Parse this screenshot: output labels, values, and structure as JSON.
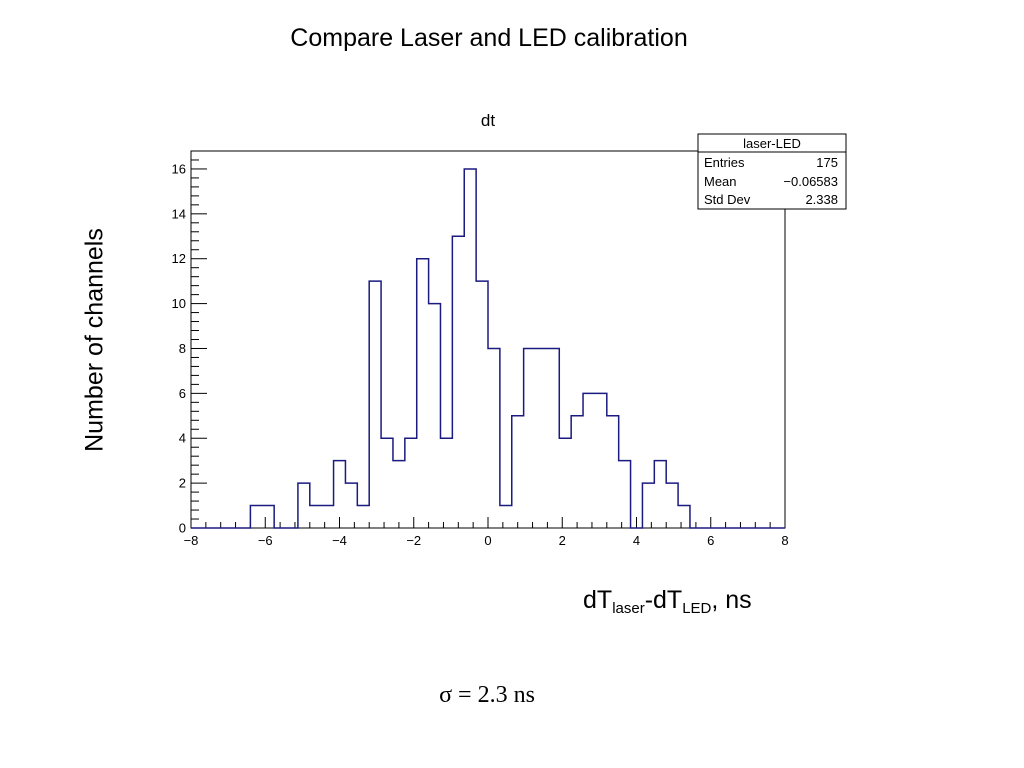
{
  "slide": {
    "title": "Compare Laser and LED calibration",
    "y_title": "Number of channels",
    "x_title_base": "dT",
    "x_title_sub1": "laser",
    "x_title_mid": "-dT",
    "x_title_sub2": "LED",
    "x_title_suffix": ", ns",
    "sigma_text": "σ = 2.3 ns"
  },
  "stats_box": {
    "name": "laser-LED",
    "rows": [
      {
        "label": "Entries",
        "value": "175"
      },
      {
        "label": "Mean",
        "value": "−0.06583"
      },
      {
        "label": "Std Dev",
        "value": "2.338"
      }
    ]
  },
  "chart_data": {
    "type": "bar",
    "title": "dt",
    "xlim": [
      -8,
      8
    ],
    "ylim": [
      0,
      16.8
    ],
    "bin_edges_start": -8,
    "bin_width": 0.32,
    "values": [
      0,
      0,
      0,
      0,
      0,
      1,
      1,
      0,
      0,
      2,
      1,
      1,
      3,
      2,
      1,
      11,
      4,
      3,
      4,
      12,
      10,
      4,
      13,
      16,
      11,
      8,
      1,
      5,
      8,
      8,
      8,
      4,
      5,
      6,
      6,
      5,
      3,
      0,
      2,
      3,
      2,
      1,
      0,
      0,
      0,
      0,
      0,
      0,
      0,
      0
    ],
    "x_ticks": [
      -8,
      -6,
      -4,
      -2,
      0,
      2,
      4,
      6,
      8
    ],
    "x_tick_labels": [
      "−8",
      "−6",
      "−4",
      "−2",
      "0",
      "2",
      "4",
      "6",
      "8"
    ],
    "y_ticks": [
      0,
      2,
      4,
      6,
      8,
      10,
      12,
      14,
      16
    ],
    "y_tick_labels": [
      "0",
      "2",
      "4",
      "6",
      "8",
      "10",
      "12",
      "14",
      "16"
    ],
    "colors": {
      "line": "#1a1a80",
      "frame": "#000000"
    }
  }
}
